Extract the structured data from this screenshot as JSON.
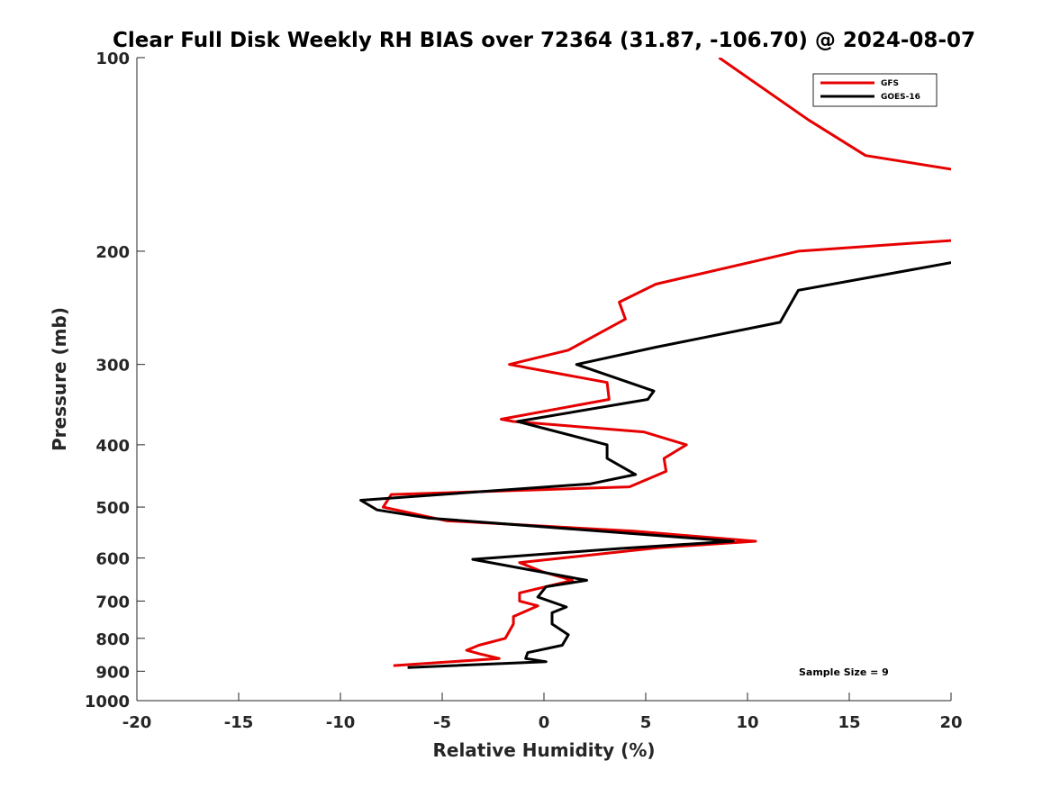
{
  "chart_data": {
    "type": "line",
    "title": "Clear Full Disk Weekly RH BIAS over 72364 (31.87, -106.70) @ 2024-08-07",
    "xlabel": "Relative Humidity (%)",
    "ylabel": "Pressure (mb)",
    "xlim": [
      -20,
      20
    ],
    "ylim": [
      100,
      1000
    ],
    "yscale": "log",
    "yreversed": true,
    "xticks": [
      -20,
      -15,
      -10,
      -5,
      0,
      5,
      10,
      15,
      20
    ],
    "xtick_labels": [
      "-20",
      "-15",
      "-10",
      "-5",
      "0",
      "5",
      "10",
      "15",
      "20"
    ],
    "yticks": [
      100,
      200,
      300,
      400,
      500,
      600,
      700,
      800,
      900,
      1000
    ],
    "ytick_labels": [
      "100",
      "200",
      "300",
      "400",
      "500",
      "600",
      "700",
      "800",
      "900",
      "1000"
    ],
    "grid": false,
    "legend_position": "top-right",
    "annotation": "Sample Size = 9",
    "series": [
      {
        "name": "GFS",
        "color": "#e60000",
        "points": [
          [
            8.6,
            100
          ],
          [
            13.0,
            125
          ],
          [
            15.8,
            142
          ],
          [
            20.5,
            150
          ],
          [
            20.5,
            192
          ],
          [
            12.5,
            200
          ],
          [
            5.5,
            225
          ],
          [
            3.7,
            240
          ],
          [
            4.0,
            255
          ],
          [
            1.2,
            285
          ],
          [
            -1.7,
            300
          ],
          [
            3.1,
            320
          ],
          [
            3.2,
            340
          ],
          [
            -2.1,
            365
          ],
          [
            -1.5,
            368
          ],
          [
            4.9,
            382
          ],
          [
            7.0,
            400
          ],
          [
            5.9,
            420
          ],
          [
            6.0,
            440
          ],
          [
            4.2,
            465
          ],
          [
            -7.5,
            478
          ],
          [
            -7.9,
            500
          ],
          [
            -4.8,
            525
          ],
          [
            4.4,
            545
          ],
          [
            10.4,
            565
          ],
          [
            5.7,
            578
          ],
          [
            -1.2,
            610
          ],
          [
            -0.1,
            630
          ],
          [
            1.4,
            650
          ],
          [
            -1.2,
            680
          ],
          [
            -1.2,
            700
          ],
          [
            -0.3,
            712
          ],
          [
            -1.5,
            740
          ],
          [
            -1.5,
            760
          ],
          [
            -1.9,
            800
          ],
          [
            -3.2,
            820
          ],
          [
            -3.8,
            835
          ],
          [
            -3.2,
            845
          ],
          [
            -2.2,
            860
          ],
          [
            -7.4,
            882
          ]
        ]
      },
      {
        "name": "GOES-16",
        "color": "#000000",
        "points": [
          [
            20.5,
            207
          ],
          [
            12.5,
            230
          ],
          [
            11.6,
            258
          ],
          [
            5.5,
            282
          ],
          [
            1.6,
            300
          ],
          [
            5.4,
            330
          ],
          [
            5.1,
            340
          ],
          [
            -1.3,
            368
          ],
          [
            3.1,
            400
          ],
          [
            3.1,
            420
          ],
          [
            4.5,
            445
          ],
          [
            2.3,
            460
          ],
          [
            -9.0,
            488
          ],
          [
            -8.2,
            505
          ],
          [
            -5.7,
            520
          ],
          [
            9.3,
            565
          ],
          [
            3.7,
            580
          ],
          [
            -3.5,
            603
          ],
          [
            2.1,
            650
          ],
          [
            0.1,
            665
          ],
          [
            -0.3,
            690
          ],
          [
            1.1,
            715
          ],
          [
            0.4,
            730
          ],
          [
            0.4,
            760
          ],
          [
            1.2,
            790
          ],
          [
            0.9,
            820
          ],
          [
            -0.8,
            842
          ],
          [
            -0.9,
            860
          ],
          [
            0.1,
            870
          ],
          [
            -6.7,
            888
          ]
        ]
      }
    ]
  }
}
